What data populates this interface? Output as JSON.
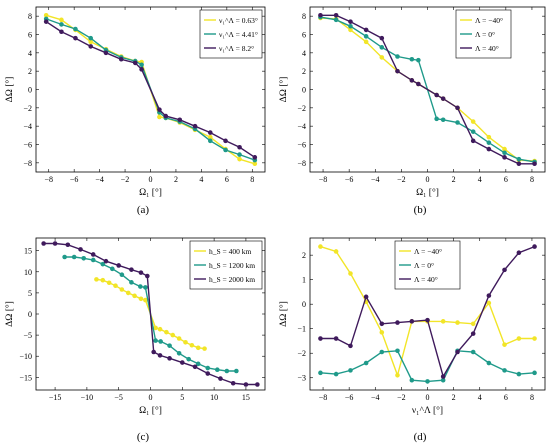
{
  "colors": {
    "yellow": "#f2e528",
    "teal": "#1f9a8a",
    "purple": "#3f1a5c"
  },
  "chart_data": [
    {
      "id": "a",
      "type": "line",
      "panel_label": "(a)",
      "xlabel": "Ω₁ [°]",
      "ylabel": "ΔΩ [°]",
      "xlim": [
        -9,
        9
      ],
      "ylim": [
        -9,
        9
      ],
      "xticks": [
        -8,
        -6,
        -4,
        -2,
        0,
        2,
        4,
        6,
        8
      ],
      "yticks": [
        -8,
        -6,
        -4,
        -2,
        0,
        2,
        4,
        6,
        8
      ],
      "legend_position": "top-right",
      "series": [
        {
          "name": "ν₁^Λ = 0.63°",
          "color": "yellow",
          "x": [
            -8.2,
            -7.0,
            -5.9,
            -4.7,
            -3.5,
            -2.3,
            -1.2,
            -0.7,
            0.7,
            1.2,
            2.3,
            3.5,
            4.7,
            5.9,
            7.0,
            8.2
          ],
          "y": [
            8.1,
            7.6,
            6.5,
            5.2,
            4.4,
            3.6,
            3.1,
            3.0,
            -3.0,
            -3.1,
            -3.6,
            -4.4,
            -5.2,
            -6.5,
            -7.6,
            -8.1
          ]
        },
        {
          "name": "ν₁^Λ = 4.41°",
          "color": "teal",
          "x": [
            -8.2,
            -7.0,
            -5.9,
            -4.7,
            -3.5,
            -2.3,
            -1.2,
            -0.7,
            0.7,
            1.2,
            2.3,
            3.5,
            4.7,
            5.9,
            7.0,
            8.2
          ],
          "y": [
            7.7,
            7.1,
            6.6,
            5.6,
            4.3,
            3.5,
            3.1,
            2.7,
            -2.5,
            -3.1,
            -3.5,
            -4.3,
            -5.6,
            -6.6,
            -7.1,
            -7.7
          ]
        },
        {
          "name": "ν₁^Λ = 8.2°",
          "color": "purple",
          "x": [
            -8.2,
            -7.0,
            -5.9,
            -4.7,
            -3.5,
            -2.3,
            -1.2,
            -0.7,
            0.7,
            1.2,
            2.3,
            3.5,
            4.7,
            5.9,
            7.0,
            8.2
          ],
          "y": [
            7.4,
            6.3,
            5.6,
            4.7,
            4.0,
            3.3,
            2.9,
            2.2,
            -2.2,
            -2.9,
            -3.3,
            -4.0,
            -4.7,
            -5.6,
            -6.3,
            -7.4
          ]
        }
      ]
    },
    {
      "id": "b",
      "type": "line",
      "panel_label": "(b)",
      "xlabel": "Ω₁ [°]",
      "ylabel": "ΔΩ [°]",
      "xlim": [
        -9,
        9
      ],
      "ylim": [
        -9,
        9
      ],
      "xticks": [
        -8,
        -6,
        -4,
        -2,
        0,
        2,
        4,
        6,
        8
      ],
      "yticks": [
        -8,
        -6,
        -4,
        -2,
        0,
        2,
        4,
        6,
        8
      ],
      "legend_position": "top-right",
      "series": [
        {
          "name": "Λ = −40°",
          "color": "yellow",
          "x": [
            -8.2,
            -7.0,
            -5.9,
            -4.7,
            -3.5,
            -2.3,
            -1.2,
            -0.7,
            0.7,
            1.2,
            2.3,
            3.5,
            4.7,
            5.9,
            7.0,
            8.2
          ],
          "y": [
            7.8,
            7.7,
            6.5,
            5.2,
            3.5,
            2.0,
            1.0,
            0.6,
            -0.6,
            -1.0,
            -2.0,
            -3.5,
            -5.2,
            -6.5,
            -7.7,
            -7.8
          ]
        },
        {
          "name": "Λ = 0°",
          "color": "teal",
          "x": [
            -8.2,
            -7.0,
            -5.9,
            -4.7,
            -3.5,
            -2.3,
            -1.2,
            -0.7,
            0.7,
            1.2,
            2.3,
            3.5,
            4.7,
            5.9,
            7.0,
            8.2
          ],
          "y": [
            7.9,
            7.6,
            6.9,
            5.8,
            4.6,
            3.6,
            3.3,
            3.2,
            -3.2,
            -3.3,
            -3.6,
            -4.6,
            -5.8,
            -6.9,
            -7.6,
            -7.9
          ]
        },
        {
          "name": "Λ = 40°",
          "color": "purple",
          "x": [
            -8.2,
            -7.0,
            -5.9,
            -4.7,
            -3.5,
            -2.3,
            -1.2,
            -0.7,
            0.7,
            1.2,
            2.3,
            3.5,
            4.7,
            5.9,
            7.0,
            8.2
          ],
          "y": [
            8.1,
            8.1,
            7.4,
            6.5,
            5.6,
            2.0,
            1.0,
            0.6,
            -0.6,
            -1.0,
            -2.0,
            -5.6,
            -6.5,
            -7.4,
            -8.1,
            -8.1
          ]
        }
      ]
    },
    {
      "id": "c",
      "type": "line",
      "panel_label": "(c)",
      "xlabel": "Ω₁ [°]",
      "ylabel": "ΔΩ [°]",
      "xlim": [
        -18,
        18
      ],
      "ylim": [
        -18,
        18
      ],
      "xticks": [
        -15,
        -10,
        -5,
        0,
        5,
        10,
        15
      ],
      "yticks": [
        -15,
        -10,
        -5,
        0,
        5,
        10,
        15
      ],
      "legend_position": "top-right",
      "series": [
        {
          "name": "h_S = 400 km",
          "color": "yellow",
          "x": [
            -8.5,
            -7.5,
            -6.5,
            -5.5,
            -4.5,
            -3.5,
            -2.5,
            -1.5,
            -0.8,
            0.8,
            1.5,
            2.5,
            3.5,
            4.5,
            5.5,
            6.5,
            7.5,
            8.5
          ],
          "y": [
            8.2,
            8.0,
            7.4,
            6.7,
            5.8,
            5.0,
            4.3,
            3.6,
            3.3,
            -3.3,
            -3.6,
            -4.3,
            -5.0,
            -5.8,
            -6.7,
            -7.4,
            -8.0,
            -8.2
          ]
        },
        {
          "name": "h_S = 1200 km",
          "color": "teal",
          "x": [
            -13.5,
            -12,
            -10.5,
            -9,
            -7.5,
            -6,
            -4.5,
            -3,
            -1.6,
            -0.8,
            0.8,
            1.6,
            3,
            4.5,
            6,
            7.5,
            9,
            10.5,
            12,
            13.5
          ],
          "y": [
            13.5,
            13.5,
            13.2,
            12.8,
            11.8,
            10.7,
            9.3,
            7.5,
            6.5,
            6.3,
            -6.3,
            -6.5,
            -7.5,
            -9.3,
            -10.7,
            -11.8,
            -12.8,
            -13.2,
            -13.5,
            -13.5
          ]
        },
        {
          "name": "h_S = 2000 km",
          "color": "purple",
          "x": [
            -16.8,
            -15,
            -13,
            -11,
            -9,
            -7,
            -5,
            -3,
            -1.5,
            -0.5,
            0.5,
            1.5,
            3,
            5,
            7,
            9,
            11,
            13,
            15,
            16.8
          ],
          "y": [
            16.7,
            16.7,
            16.4,
            15.3,
            14.1,
            12.5,
            11.5,
            10.5,
            9.8,
            9.0,
            -9.0,
            -9.8,
            -10.5,
            -11.5,
            -12.5,
            -14.1,
            -15.3,
            -16.4,
            -16.7,
            -16.7
          ]
        }
      ]
    },
    {
      "id": "d",
      "type": "line",
      "panel_label": "(d)",
      "xlabel": "ν₁^Λ [°]",
      "ylabel": "ΔΩ [°]",
      "xlim": [
        -9,
        9
      ],
      "ylim": [
        -3.5,
        2.7
      ],
      "xticks": [
        -8,
        -6,
        -4,
        -2,
        0,
        2,
        4,
        6,
        8
      ],
      "yticks": [
        -3,
        -2,
        -1,
        0,
        1,
        2
      ],
      "legend_position": "top-center",
      "series": [
        {
          "name": "Λ = −40°",
          "color": "yellow",
          "x": [
            -8.2,
            -7.0,
            -5.9,
            -4.7,
            -3.5,
            -2.3,
            -1.2,
            0.0,
            1.2,
            2.3,
            3.5,
            4.7,
            5.9,
            7.0,
            8.2
          ],
          "y": [
            2.35,
            2.15,
            1.25,
            0.1,
            -1.15,
            -2.9,
            -0.7,
            -0.7,
            -0.7,
            -0.75,
            -0.8,
            0.05,
            -1.65,
            -1.4,
            -1.4
          ]
        },
        {
          "name": "Λ = 0°",
          "color": "teal",
          "x": [
            -8.2,
            -7.0,
            -5.9,
            -4.7,
            -3.5,
            -2.3,
            -1.2,
            0.0,
            1.2,
            2.3,
            3.5,
            4.7,
            5.9,
            7.0,
            8.2
          ],
          "y": [
            -2.8,
            -2.85,
            -2.7,
            -2.4,
            -1.95,
            -1.9,
            -3.1,
            -3.15,
            -3.1,
            -1.9,
            -1.95,
            -2.4,
            -2.7,
            -2.85,
            -2.8
          ]
        },
        {
          "name": "Λ = 40°",
          "color": "purple",
          "x": [
            -8.2,
            -7.0,
            -5.9,
            -4.7,
            -3.5,
            -2.3,
            -1.2,
            0.0,
            1.2,
            2.3,
            3.5,
            4.7,
            5.9,
            7.0,
            8.2
          ],
          "y": [
            -1.4,
            -1.4,
            -1.7,
            0.3,
            -0.8,
            -0.75,
            -0.7,
            -0.65,
            -2.95,
            -1.95,
            -1.2,
            0.35,
            1.4,
            2.1,
            2.35
          ]
        }
      ]
    }
  ]
}
